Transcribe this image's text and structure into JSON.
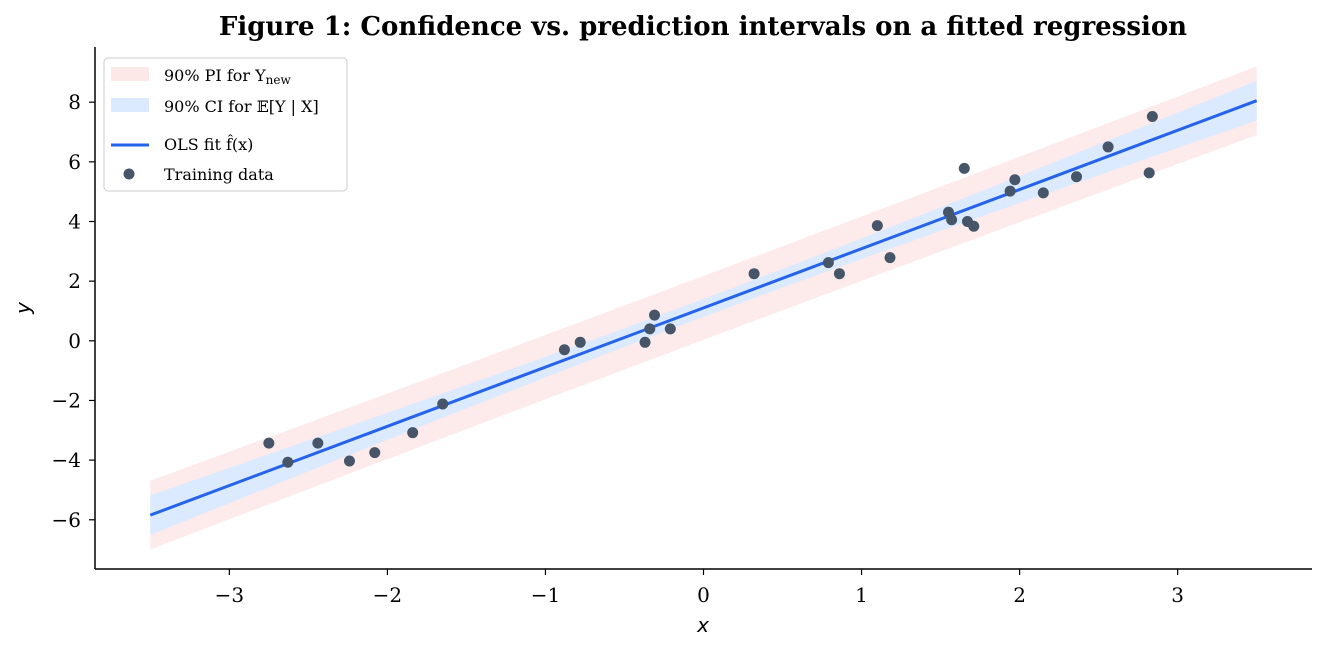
{
  "chart_data": {
    "type": "scatter",
    "title": "Figure 1: Confidence vs. prediction intervals on a fitted regression",
    "xlabel": "x",
    "ylabel": "y",
    "xlim": [
      -3.85,
      3.85
    ],
    "ylim": [
      -7.65,
      9.85
    ],
    "xticks": [
      -3,
      -2,
      -1,
      0,
      1,
      2,
      3
    ],
    "xtick_labels": [
      "−3",
      "−2",
      "−1",
      "0",
      "1",
      "2",
      "3"
    ],
    "yticks": [
      -6,
      -4,
      -2,
      0,
      2,
      4,
      6,
      8
    ],
    "ytick_labels": [
      "−6",
      "−4",
      "−2",
      "0",
      "2",
      "4",
      "6",
      "8"
    ],
    "grid": false,
    "legend_position": "top-left",
    "fit": {
      "slope": 1.985,
      "intercept": 1.103,
      "x_range": [
        -3.5,
        3.5
      ]
    },
    "ci": {
      "sd_residual": 0.25,
      "x_mean": 0.0,
      "sd_x": 1.8
    },
    "pi": {
      "halfwidth_at_mean": 1.05
    },
    "series": [
      {
        "name": "Training data",
        "x": [
          -2.75,
          -2.63,
          -2.44,
          -2.24,
          -2.08,
          -1.84,
          -1.65,
          -0.88,
          -0.78,
          -0.37,
          -0.34,
          -0.31,
          -0.21,
          0.32,
          0.79,
          0.86,
          1.1,
          1.18,
          1.55,
          1.57,
          1.65,
          1.67,
          1.71,
          1.94,
          1.97,
          2.15,
          2.36,
          2.56,
          2.82,
          2.84
        ],
        "y": [
          -3.43,
          -4.07,
          -3.43,
          -4.03,
          -3.75,
          -3.08,
          -2.12,
          -0.3,
          -0.05,
          -0.05,
          0.4,
          0.86,
          0.4,
          2.25,
          2.62,
          2.25,
          3.86,
          2.79,
          4.31,
          4.06,
          5.78,
          4.0,
          3.84,
          5.02,
          5.4,
          4.96,
          5.5,
          6.5,
          5.63,
          7.52
        ]
      }
    ],
    "legend": [
      {
        "name": "90% PI for Y",
        "sub": "new"
      },
      {
        "name": "90% CI for 𝔼[Y | X]"
      },
      {
        "name": "OLS fit f̂(x)"
      },
      {
        "name": "Training data"
      }
    ],
    "colors": {
      "fit": "#2563eb",
      "ci_band": "#dbeafe",
      "pi_band": "#fde8e8",
      "points": "#475569"
    }
  }
}
